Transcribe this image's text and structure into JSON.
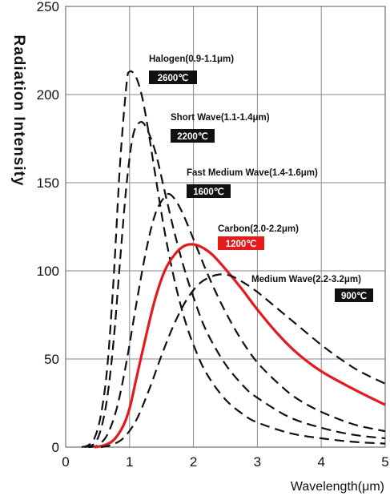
{
  "chart_data": {
    "type": "line",
    "ylabel": "Radiation Intensity",
    "xlabel": "Wavelength(μm)",
    "xlim": [
      0,
      5
    ],
    "ylim": [
      0,
      250
    ],
    "x_ticks": [
      "0",
      "1",
      "2",
      "3",
      "4",
      "5"
    ],
    "y_ticks": [
      "0",
      "50",
      "100",
      "150",
      "200",
      "250"
    ],
    "grid": true,
    "series": [
      {
        "name": "Halogen(0.9-1.1μm)",
        "temperature": "2600℃",
        "style": "dashed",
        "color": "#111111",
        "points": [
          [
            0.25,
            0
          ],
          [
            0.35,
            1
          ],
          [
            0.45,
            5
          ],
          [
            0.55,
            18
          ],
          [
            0.65,
            45
          ],
          [
            0.75,
            95
          ],
          [
            0.85,
            160
          ],
          [
            0.95,
            205
          ],
          [
            1.0,
            213
          ],
          [
            1.1,
            210
          ],
          [
            1.2,
            198
          ],
          [
            1.3,
            178
          ],
          [
            1.4,
            155
          ],
          [
            1.55,
            122
          ],
          [
            1.7,
            95
          ],
          [
            1.85,
            74
          ],
          [
            2.0,
            58
          ],
          [
            2.2,
            42
          ],
          [
            2.5,
            27
          ],
          [
            2.8,
            18
          ],
          [
            3.0,
            14
          ],
          [
            3.5,
            8
          ],
          [
            4.0,
            5
          ],
          [
            4.5,
            3
          ],
          [
            5.0,
            2
          ]
        ]
      },
      {
        "name": "Short Wave(1.1-1.4μm)",
        "temperature": "2200℃",
        "style": "dashed",
        "color": "#111111",
        "points": [
          [
            0.3,
            0
          ],
          [
            0.45,
            2
          ],
          [
            0.55,
            10
          ],
          [
            0.65,
            28
          ],
          [
            0.75,
            60
          ],
          [
            0.85,
            105
          ],
          [
            0.95,
            148
          ],
          [
            1.05,
            176
          ],
          [
            1.15,
            184
          ],
          [
            1.25,
            182
          ],
          [
            1.4,
            168
          ],
          [
            1.55,
            145
          ],
          [
            1.7,
            122
          ],
          [
            1.85,
            102
          ],
          [
            2.0,
            85
          ],
          [
            2.2,
            66
          ],
          [
            2.5,
            47
          ],
          [
            2.8,
            34
          ],
          [
            3.0,
            28
          ],
          [
            3.5,
            17
          ],
          [
            4.0,
            11
          ],
          [
            4.5,
            7
          ],
          [
            5.0,
            5
          ]
        ]
      },
      {
        "name": "Fast Medium Wave(1.4-1.6μm)",
        "temperature": "1600℃",
        "style": "dashed",
        "color": "#111111",
        "points": [
          [
            0.35,
            0
          ],
          [
            0.5,
            1
          ],
          [
            0.65,
            7
          ],
          [
            0.8,
            22
          ],
          [
            0.95,
            48
          ],
          [
            1.1,
            80
          ],
          [
            1.25,
            110
          ],
          [
            1.4,
            132
          ],
          [
            1.55,
            142
          ],
          [
            1.65,
            143
          ],
          [
            1.8,
            135
          ],
          [
            2.0,
            118
          ],
          [
            2.2,
            100
          ],
          [
            2.4,
            84
          ],
          [
            2.6,
            70
          ],
          [
            2.8,
            58
          ],
          [
            3.0,
            48
          ],
          [
            3.3,
            37
          ],
          [
            3.6,
            28
          ],
          [
            4.0,
            20
          ],
          [
            4.5,
            13
          ],
          [
            5.0,
            9
          ]
        ]
      },
      {
        "name": "Carbon(2.0-2.2μm)",
        "temperature": "1200℃",
        "style": "solid",
        "color": "#e41a1c",
        "points": [
          [
            0.45,
            0
          ],
          [
            0.6,
            1
          ],
          [
            0.75,
            4
          ],
          [
            0.9,
            12
          ],
          [
            1.0,
            22
          ],
          [
            1.1,
            38
          ],
          [
            1.25,
            62
          ],
          [
            1.4,
            84
          ],
          [
            1.55,
            100
          ],
          [
            1.7,
            109
          ],
          [
            1.85,
            114
          ],
          [
            2.0,
            115
          ],
          [
            2.15,
            113
          ],
          [
            2.3,
            109
          ],
          [
            2.5,
            101
          ],
          [
            2.75,
            90
          ],
          [
            3.0,
            78
          ],
          [
            3.3,
            65
          ],
          [
            3.6,
            54
          ],
          [
            4.0,
            43
          ],
          [
            4.5,
            33
          ],
          [
            5.0,
            24
          ]
        ]
      },
      {
        "name": "Medium Wave(2.2-3.2μm)",
        "temperature": "900℃",
        "style": "dashed",
        "color": "#111111",
        "points": [
          [
            0.55,
            0
          ],
          [
            0.7,
            1
          ],
          [
            0.9,
            5
          ],
          [
            1.1,
            15
          ],
          [
            1.3,
            32
          ],
          [
            1.5,
            52
          ],
          [
            1.7,
            70
          ],
          [
            1.9,
            84
          ],
          [
            2.1,
            93
          ],
          [
            2.3,
            97
          ],
          [
            2.45,
            98
          ],
          [
            2.6,
            97
          ],
          [
            2.8,
            93
          ],
          [
            3.0,
            88
          ],
          [
            3.3,
            79
          ],
          [
            3.6,
            70
          ],
          [
            4.0,
            58
          ],
          [
            4.3,
            50
          ],
          [
            4.6,
            43
          ],
          [
            5.0,
            36
          ]
        ]
      }
    ]
  },
  "colors": {
    "halogen": "#111111",
    "carbon": "#e41a1c",
    "badge_dark": "#111111",
    "badge_red": "#e41a1c",
    "grid": "#8a8a8a"
  }
}
